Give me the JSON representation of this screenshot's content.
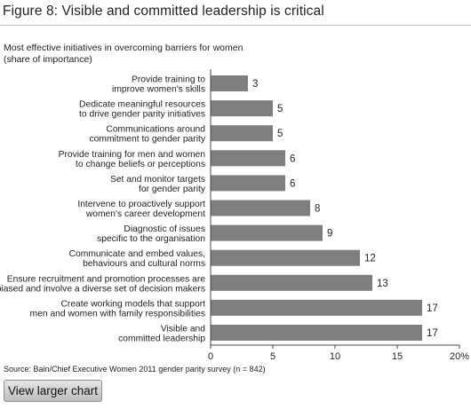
{
  "figure": {
    "title": "Figure 8: Visible and committed leadership is critical",
    "source": "Source: Bain/Chief Executive Women 2011 gender parity survey (n = 842)",
    "button_label": "View larger chart"
  },
  "chart_data": {
    "type": "bar",
    "orientation": "horizontal",
    "subtitle_lines": [
      "Most effective initiatives in overcoming barriers for women",
      "(share of importance)"
    ],
    "categories": [
      [
        "Provide training to",
        "improve women's skills"
      ],
      [
        "Dedicate meaningful resources",
        "to drive gender parity initiatives"
      ],
      [
        "Communications around",
        "commitment to gender parity"
      ],
      [
        "Provide training for men and women",
        "to change beliefs or perceptions"
      ],
      [
        "Set and monitor targets",
        "for gender parity"
      ],
      [
        "Intervene to proactively support",
        "women's career development"
      ],
      [
        "Diagnostic of issues",
        "specific to the organisation"
      ],
      [
        "Communicate and embed values,",
        "behaviours and cultural norms"
      ],
      [
        "Ensure recruitment and promotion processes are",
        "unbiased and involve a diverse set of decision makers"
      ],
      [
        "Create working models that support",
        "men and women with family responsibilities"
      ],
      [
        "Visible and",
        "committed leadership"
      ]
    ],
    "values": [
      3,
      5,
      5,
      6,
      6,
      8,
      9,
      12,
      13,
      17,
      17
    ],
    "value_labels": [
      "3",
      "5",
      "5",
      "6",
      "6",
      "8",
      "9",
      "12",
      "13",
      "17",
      "17"
    ],
    "xlim": [
      0,
      20
    ],
    "x_ticks": [
      0,
      5,
      10,
      15,
      20
    ],
    "x_tick_labels": [
      "0",
      "5",
      "10",
      "15",
      "20%"
    ],
    "bar_color": "#7f7f7f",
    "grid": false
  }
}
